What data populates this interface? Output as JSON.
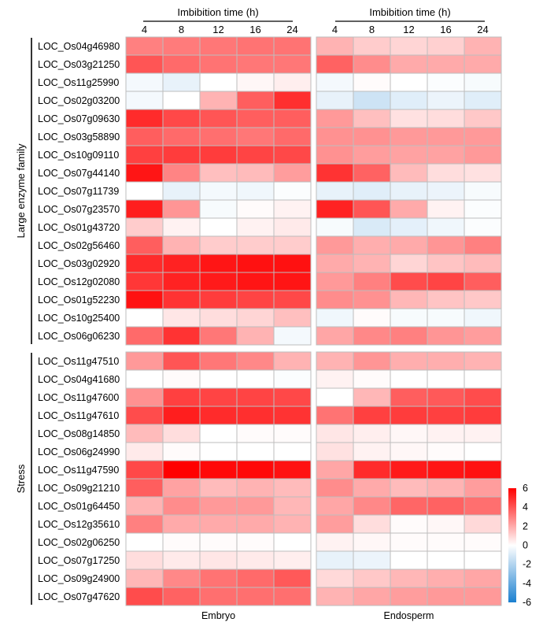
{
  "chart_data": {
    "type": "heatmap",
    "col_header_label": "Imbibition time (h)",
    "columns": [
      "4",
      "8",
      "12",
      "16",
      "24"
    ],
    "panels": [
      {
        "name": "Embryo"
      },
      {
        "name": "Endosperm"
      }
    ],
    "groups": [
      {
        "name": "Large enzyme family",
        "rows": [
          {
            "gene": "LOC_Os04g46980",
            "embryo": [
              3.0,
              3.1,
              3.2,
              3.3,
              3.3
            ],
            "endosperm": [
              1.8,
              1.2,
              1.0,
              1.1,
              1.8
            ]
          },
          {
            "gene": "LOC_Os03g21250",
            "embryo": [
              4.0,
              3.5,
              3.3,
              3.2,
              3.2
            ],
            "endosperm": [
              3.7,
              2.7,
              2.0,
              2.0,
              2.0
            ]
          },
          {
            "gene": "LOC_Os11g25990",
            "embryo": [
              -0.3,
              -0.6,
              0.0,
              0.2,
              0.4
            ],
            "endosperm": [
              -0.3,
              0.1,
              0.0,
              -0.1,
              -0.2
            ]
          },
          {
            "gene": "LOC_Os02g03200",
            "embryo": [
              -0.3,
              0.0,
              1.8,
              3.8,
              4.9
            ],
            "endosperm": [
              -0.6,
              -1.3,
              -0.8,
              -0.5,
              -0.8
            ]
          },
          {
            "gene": "LOC_Os07g09630",
            "embryo": [
              5.0,
              4.3,
              4.0,
              3.8,
              3.8
            ],
            "endosperm": [
              2.4,
              1.5,
              0.7,
              0.8,
              1.3
            ]
          },
          {
            "gene": "LOC_Os03g58890",
            "embryo": [
              3.8,
              3.5,
              3.4,
              3.2,
              3.5
            ],
            "endosperm": [
              2.6,
              2.6,
              2.4,
              2.4,
              2.4
            ]
          },
          {
            "gene": "LOC_Os10g09110",
            "embryo": [
              4.5,
              4.6,
              4.6,
              4.4,
              4.3
            ],
            "endosperm": [
              2.6,
              2.3,
              2.2,
              2.2,
              2.4
            ]
          },
          {
            "gene": "LOC_Os07g44140",
            "embryo": [
              5.5,
              2.9,
              1.5,
              1.6,
              2.3
            ],
            "endosperm": [
              4.8,
              3.7,
              1.6,
              0.8,
              0.7
            ]
          },
          {
            "gene": "LOC_Os07g11739",
            "embryo": [
              0.0,
              -0.6,
              -0.3,
              -0.4,
              -0.1
            ],
            "endosperm": [
              -0.6,
              -0.8,
              -0.6,
              -0.5,
              -0.2
            ]
          },
          {
            "gene": "LOC_Os07g23570",
            "embryo": [
              5.3,
              2.5,
              -0.2,
              0.1,
              0.3
            ],
            "endosperm": [
              5.2,
              4.0,
              2.0,
              0.3,
              -0.1
            ]
          },
          {
            "gene": "LOC_Os01g43720",
            "embryo": [
              1.2,
              0.3,
              0.0,
              0.3,
              0.5
            ],
            "endosperm": [
              -0.2,
              -1.0,
              -0.7,
              -0.4,
              -0.1
            ]
          },
          {
            "gene": "LOC_Os02g56460",
            "embryo": [
              3.8,
              1.8,
              1.2,
              1.2,
              1.2
            ],
            "endosperm": [
              2.4,
              1.9,
              2.0,
              2.5,
              3.0
            ]
          },
          {
            "gene": "LOC_Os03g02920",
            "embryo": [
              5.0,
              5.2,
              5.5,
              5.6,
              5.6
            ],
            "endosperm": [
              2.0,
              1.8,
              1.0,
              1.4,
              1.6
            ]
          },
          {
            "gene": "LOC_Os12g02080",
            "embryo": [
              4.7,
              5.2,
              5.4,
              5.5,
              5.5
            ],
            "endosperm": [
              2.4,
              3.0,
              4.2,
              4.4,
              3.8
            ]
          },
          {
            "gene": "LOC_Os01g52230",
            "embryo": [
              5.6,
              4.8,
              4.6,
              4.4,
              4.3
            ],
            "endosperm": [
              2.7,
              2.6,
              1.7,
              1.4,
              1.3
            ]
          },
          {
            "gene": "LOC_Os10g25400",
            "embryo": [
              0.0,
              0.6,
              0.8,
              1.0,
              1.5
            ],
            "endosperm": [
              -0.4,
              0.1,
              -0.2,
              -0.2,
              -0.4
            ]
          },
          {
            "gene": "LOC_Os06g06230",
            "embryo": [
              3.5,
              4.8,
              3.2,
              1.8,
              -0.3
            ],
            "endosperm": [
              2.1,
              2.8,
              3.0,
              2.5,
              2.3
            ]
          }
        ]
      },
      {
        "name": "Stress",
        "rows": [
          {
            "gene": "LOC_Os11g47510",
            "embryo": [
              2.4,
              4.0,
              3.2,
              2.8,
              1.8
            ],
            "endosperm": [
              1.8,
              2.5,
              1.9,
              1.9,
              1.8
            ]
          },
          {
            "gene": "LOC_Os04g41680",
            "embryo": [
              0.0,
              0.1,
              0.0,
              0.0,
              -0.1
            ],
            "endosperm": [
              0.3,
              0.1,
              0.0,
              0.0,
              0.0
            ]
          },
          {
            "gene": "LOC_Os11g47600",
            "embryo": [
              2.6,
              4.5,
              4.4,
              4.4,
              4.3
            ],
            "endosperm": [
              0.0,
              1.7,
              3.8,
              3.9,
              4.2
            ]
          },
          {
            "gene": "LOC_Os11g47610",
            "embryo": [
              4.2,
              5.3,
              5.0,
              4.9,
              4.8
            ],
            "endosperm": [
              3.3,
              4.5,
              4.6,
              4.5,
              4.6
            ]
          },
          {
            "gene": "LOC_Os08g14850",
            "embryo": [
              1.6,
              0.8,
              0.0,
              0.1,
              0.1
            ],
            "endosperm": [
              0.6,
              0.4,
              0.2,
              0.3,
              0.3
            ]
          },
          {
            "gene": "LOC_Os06g24990",
            "embryo": [
              0.5,
              0.1,
              0.0,
              0.0,
              0.0
            ],
            "endosperm": [
              0.7,
              0.3,
              0.2,
              0.1,
              0.0
            ]
          },
          {
            "gene": "LOC_Os11g47590",
            "embryo": [
              4.3,
              6.0,
              5.8,
              5.8,
              5.6
            ],
            "endosperm": [
              2.1,
              5.0,
              5.4,
              5.5,
              5.6
            ]
          },
          {
            "gene": "LOC_Os09g21210",
            "embryo": [
              3.8,
              2.2,
              1.6,
              1.8,
              1.6
            ],
            "endosperm": [
              2.7,
              2.0,
              1.6,
              1.8,
              2.3
            ]
          },
          {
            "gene": "LOC_Os01g64450",
            "embryo": [
              1.8,
              2.7,
              2.4,
              2.4,
              1.7
            ],
            "endosperm": [
              2.1,
              2.8,
              3.6,
              3.7,
              3.4
            ]
          },
          {
            "gene": "LOC_Os12g35610",
            "embryo": [
              3.0,
              2.0,
              2.0,
              2.0,
              1.8
            ],
            "endosperm": [
              2.3,
              0.8,
              0.1,
              0.2,
              0.9
            ]
          },
          {
            "gene": "LOC_Os02g06250",
            "embryo": [
              0.0,
              0.1,
              0.1,
              0.1,
              0.0
            ],
            "endosperm": [
              0.3,
              0.2,
              0.1,
              0.1,
              0.1
            ]
          },
          {
            "gene": "LOC_Os07g17250",
            "embryo": [
              0.8,
              0.5,
              0.6,
              0.5,
              0.4
            ],
            "endosperm": [
              -0.6,
              -0.5,
              0.0,
              0.0,
              0.0
            ]
          },
          {
            "gene": "LOC_Os09g24900",
            "embryo": [
              1.7,
              2.8,
              3.3,
              3.5,
              3.9
            ],
            "endosperm": [
              0.9,
              1.3,
              1.7,
              1.9,
              2.1
            ]
          },
          {
            "gene": "LOC_Os07g47620",
            "embryo": [
              4.2,
              3.7,
              3.4,
              3.4,
              3.4
            ],
            "endosperm": [
              1.8,
              2.1,
              2.3,
              2.4,
              2.4
            ]
          }
        ]
      }
    ],
    "color_scale": {
      "min": -6,
      "max": 6,
      "low_color": "#1a80d0",
      "mid_color": "#ffffff",
      "high_color": "#ff0000",
      "ticks": [
        "6",
        "4",
        "2",
        "0",
        "-2",
        "-4",
        "-6"
      ]
    },
    "grid_color": "#bdbdbd"
  }
}
